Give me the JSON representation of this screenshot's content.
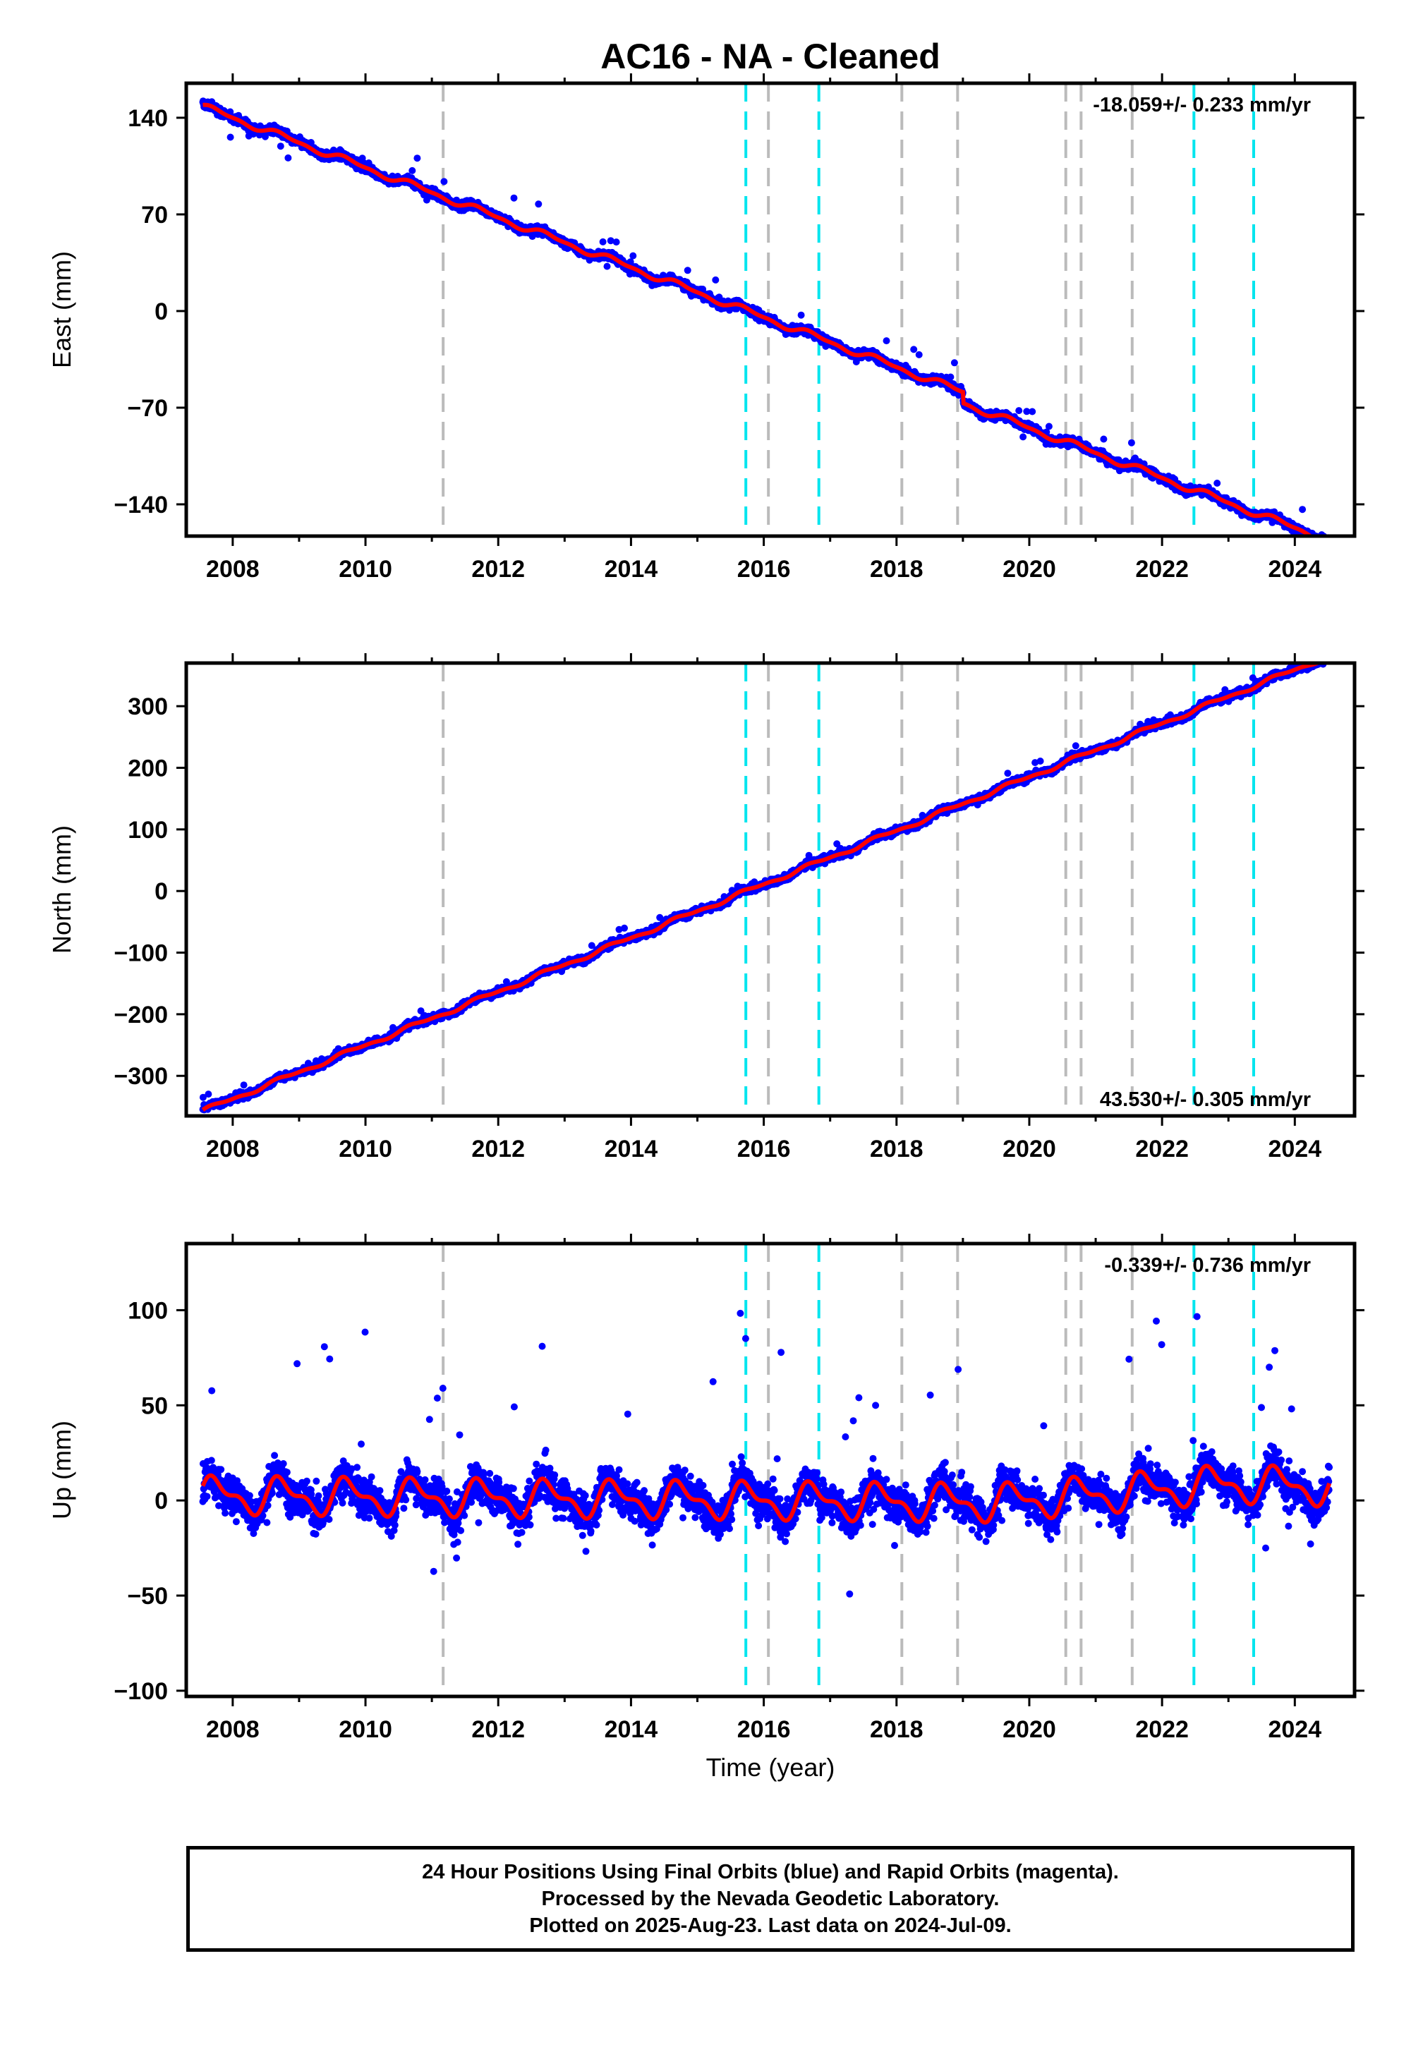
{
  "title": "AC16  - NA - Cleaned",
  "x_axis_label": "Time (year)",
  "footer": {
    "line1": "24 Hour Positions Using Final Orbits (blue) and Rapid Orbits (magenta).",
    "line2": "Processed by the Nevada Geodetic Laboratory.",
    "line3": "Plotted on 2025-Aug-23. Last data on 2024-Jul-09."
  },
  "colors": {
    "data_points": "#0000ff",
    "model_fit": "#ff0000",
    "equipment_change": "#bbbbbb",
    "earthquake": "#00e5ee",
    "frame": "#000000"
  },
  "chart_data": [
    {
      "type": "scatter",
      "component": "east",
      "ylabel": "East (mm)",
      "rate_label": "-18.059+/- 0.233 mm/yr",
      "rate_position": "top-right",
      "xlim": [
        2007.3,
        2024.9
      ],
      "ylim": [
        -163,
        165
      ],
      "x_ticks": [
        2008,
        2010,
        2012,
        2014,
        2016,
        2018,
        2020,
        2022,
        2024
      ],
      "y_ticks": [
        140,
        70,
        0,
        -70,
        -140
      ],
      "y_tick_labels": [
        "140",
        "70",
        "0",
        "−70",
        "−140"
      ],
      "trend": {
        "slope_mm_per_yr": -18.059,
        "intercept_mm": 0,
        "ref_year": 2015.75,
        "seasonal_amplitude_mm": 2
      },
      "steps": [
        {
          "year": 2019.0,
          "offset_mm": -8
        }
      ],
      "grid": false
    },
    {
      "type": "scatter",
      "component": "north",
      "ylabel": "North (mm)",
      "rate_label": "43.530+/- 0.305 mm/yr",
      "rate_position": "bottom-right",
      "xlim": [
        2007.3,
        2024.9
      ],
      "ylim": [
        -365,
        370
      ],
      "x_ticks": [
        2008,
        2010,
        2012,
        2014,
        2016,
        2018,
        2020,
        2022,
        2024
      ],
      "y_ticks": [
        300,
        200,
        100,
        0,
        -100,
        -200,
        -300
      ],
      "y_tick_labels": [
        "300",
        "200",
        "100",
        "0",
        "−100",
        "−200",
        "−300"
      ],
      "trend": {
        "slope_mm_per_yr": 43.53,
        "intercept_mm": 0,
        "ref_year": 2015.75,
        "seasonal_amplitude_mm": 3
      },
      "steps": [],
      "grid": false
    },
    {
      "type": "scatter",
      "component": "up",
      "ylabel": "Up (mm)",
      "rate_label": "-0.339+/- 0.736 mm/yr",
      "rate_position": "top-right",
      "xlim": [
        2007.3,
        2024.9
      ],
      "ylim": [
        -103,
        135
      ],
      "x_ticks": [
        2008,
        2010,
        2012,
        2014,
        2016,
        2018,
        2020,
        2022,
        2024
      ],
      "y_ticks": [
        100,
        50,
        0,
        -50,
        -100
      ],
      "y_tick_labels": [
        "100",
        "50",
        "0",
        "−50",
        "−100"
      ],
      "trend": {
        "slope_mm_per_yr": -0.339,
        "intercept_mm": 0,
        "ref_year": 2015.75,
        "seasonal_amplitude_mm": 8
      },
      "steps": [],
      "grid": false
    }
  ],
  "equipment_change_years": [
    2011.17,
    2016.07,
    2018.08,
    2018.92,
    2020.55,
    2020.78,
    2021.55
  ],
  "earthquake_years": [
    2015.73,
    2016.83,
    2022.48,
    2023.38
  ],
  "data_span": {
    "start": 2007.55,
    "end": 2024.52
  }
}
